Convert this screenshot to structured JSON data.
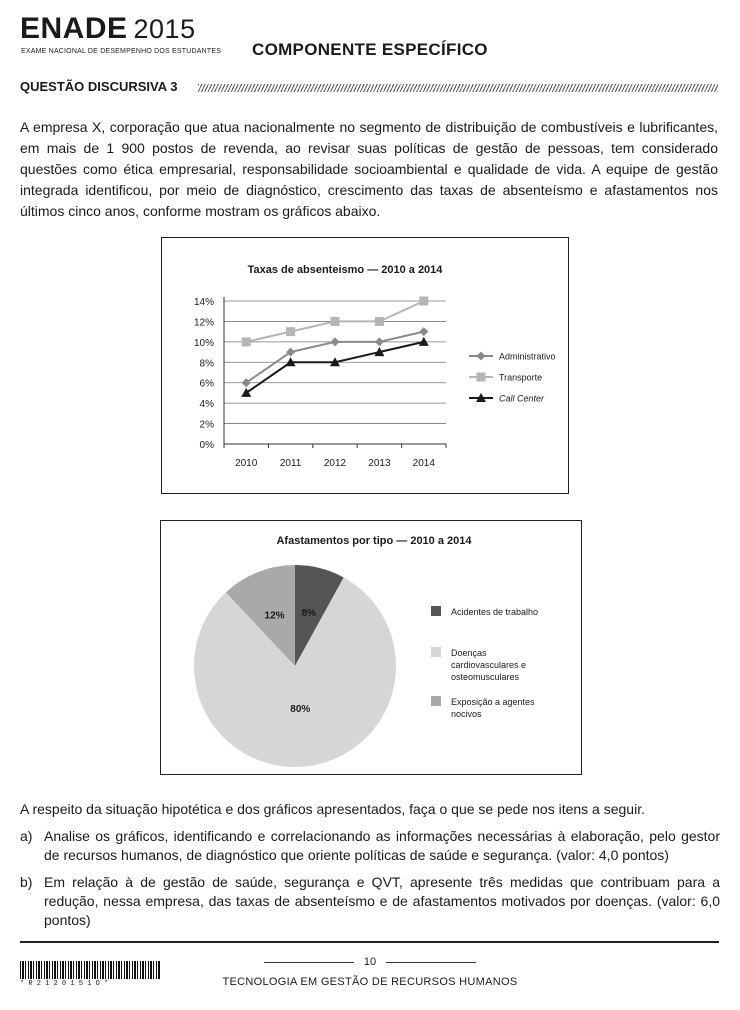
{
  "header": {
    "logo": "ENADE",
    "year": "2015",
    "logo_subtitle": "EXAME NACIONAL DE DESEMPENHO DOS ESTUDANTES",
    "component_title": "COMPONENTE ESPECÍFICO"
  },
  "question": {
    "title": "QUESTÃO DISCURSIVA 3",
    "intro": "A empresa X, corporação que atua nacionalmente no segmento de distribuição de combustíveis e lubrificantes, em mais de 1 900 postos de revenda, ao revisar suas políticas de gestão de pessoas, tem considerado questões como ética empresarial, responsabilidade socioambiental e qualidade de vida. A equipe de gestão integrada identificou, por meio de diagnóstico, crescimento das taxas de absenteísmo e afastamentos nos últimos cinco anos, conforme mostram os gráficos abaixo.",
    "prompt": "A respeito da situação hipotética e dos gráficos apresentados, faça o que se pede nos itens a seguir.",
    "items": [
      {
        "label": "a)",
        "text": "Analise os gráficos, identificando e correlacionando as informações necessárias à elaboração, pelo gestor de recursos humanos, de diagnóstico que oriente políticas de saúde e segurança. (valor: 4,0 pontos)"
      },
      {
        "label": "b)",
        "text": "Em relação à de gestão de saúde, segurança e QVT, apresente três medidas que contribuam para a redução, nessa empresa, das taxas de absenteísmo e de afastamentos motivados por doenças. (valor: 6,0 pontos)"
      }
    ]
  },
  "chart_data": [
    {
      "type": "line",
      "title": "Taxas de absenteismo — 2010 a 2014",
      "x": [
        "2010",
        "2011",
        "2012",
        "2013",
        "2014"
      ],
      "ylim": [
        0,
        14
      ],
      "yticks": [
        "0%",
        "2%",
        "4%",
        "6%",
        "8%",
        "10%",
        "12%",
        "14%"
      ],
      "grid": true,
      "legend": "right",
      "series": [
        {
          "name": "Administrativo",
          "values": [
            6,
            9,
            10,
            10,
            11
          ],
          "color": "#8a8a8a",
          "marker": "diamond"
        },
        {
          "name": "Transporte",
          "values": [
            10,
            11,
            12,
            12,
            14
          ],
          "color": "#b5b5b5",
          "marker": "square"
        },
        {
          "name": "Call Center",
          "values": [
            5,
            8,
            8,
            9,
            10
          ],
          "color": "#1a1a1a",
          "marker": "triangle"
        }
      ]
    },
    {
      "type": "pie",
      "title": "Afastamentos por tipo — 2010 a 2014",
      "legend": "right",
      "slices": [
        {
          "name": "Acidentes de trabalho",
          "value": 8,
          "label": "8%",
          "color": "#555555"
        },
        {
          "name": "Doenças cardiovasculares e osteomusculares",
          "value": 80,
          "label": "80%",
          "color": "#d6d6d6"
        },
        {
          "name": "Exposição a agentes nocivos",
          "value": 12,
          "label": "12%",
          "color": "#a9a9a9"
        }
      ]
    }
  ],
  "footer": {
    "page_number": "10",
    "course": "TECNOLOGIA EM GESTÃO DE RECURSOS HUMANOS",
    "barcode_number": "*R2120151O*"
  }
}
